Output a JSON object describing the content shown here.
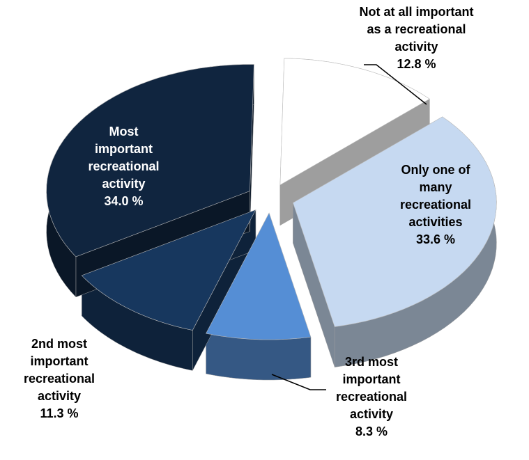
{
  "chart_data": {
    "type": "pie",
    "categories": [
      "Not at all important as a recreational activity",
      "Only one of many recreational activities",
      "3rd most important recreational activity",
      "2nd most important recreational activity",
      "Most important recreational activity"
    ],
    "values": [
      12.8,
      33.6,
      8.3,
      11.3,
      34.0
    ],
    "value_labels": [
      "12.8 %",
      "33.6 %",
      "8.3 %",
      "11.3 %",
      "34.0 %"
    ],
    "colors": [
      "#ffffff",
      "#c6d9f1",
      "#558ed5",
      "#17375e",
      "#10253f"
    ]
  }
}
